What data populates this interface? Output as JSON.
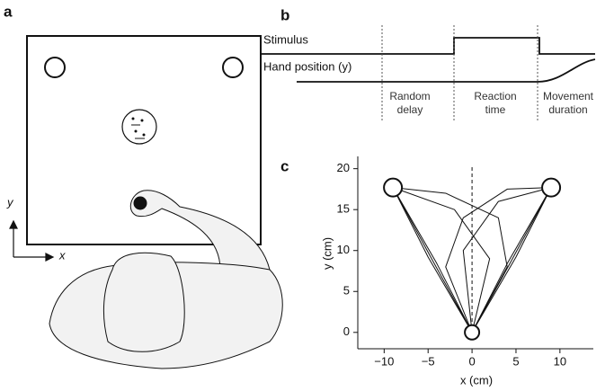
{
  "panel_a": {
    "label": "a",
    "axis_y": "y",
    "axis_x": "x"
  },
  "panel_b": {
    "label": "b",
    "stimulus": "Stimulus",
    "hand_position": "Hand position (y)",
    "phases": [
      [
        "Random",
        "delay"
      ],
      [
        "Reaction",
        "time"
      ],
      [
        "Movement",
        "duration"
      ]
    ]
  },
  "chart_data": {
    "type": "line",
    "panel_label": "c",
    "xlabel": "x (cm)",
    "ylabel": "y (cm)",
    "xlim": [
      -13,
      13.8
    ],
    "ylim": [
      -2,
      21.5
    ],
    "xticks": [
      {
        "value": -10,
        "label": "−10"
      },
      {
        "value": -5,
        "label": "−5"
      },
      0,
      5,
      10
    ],
    "yticks": [
      0,
      5,
      10,
      15,
      20
    ],
    "start": {
      "x": 0,
      "y": 0
    },
    "targets": {
      "x": [
        -9,
        9
      ],
      "y": [
        17.7,
        17.7
      ]
    },
    "trajectories": [
      {
        "x": [
          0,
          -4.5,
          -9
        ],
        "values": [
          0,
          8.8,
          17.7
        ]
      },
      {
        "x": [
          0,
          -4,
          -9
        ],
        "values": [
          0,
          8.4,
          17.7
        ]
      },
      {
        "x": [
          0,
          -5,
          -9
        ],
        "values": [
          0,
          9.2,
          17.7
        ]
      },
      {
        "x": [
          0,
          4.5,
          9
        ],
        "values": [
          0,
          8.8,
          17.7
        ]
      },
      {
        "x": [
          0,
          4,
          9
        ],
        "values": [
          0,
          8.4,
          17.7
        ]
      },
      {
        "x": [
          0,
          5,
          9
        ],
        "values": [
          0,
          9.2,
          17.7
        ]
      },
      {
        "x": [
          0,
          4,
          3,
          -3,
          -9
        ],
        "values": [
          0,
          8,
          14,
          17,
          17.7
        ]
      },
      {
        "x": [
          0,
          2,
          -2,
          -9
        ],
        "values": [
          0,
          9,
          15,
          17.7
        ]
      },
      {
        "x": [
          0,
          -3,
          -1,
          4,
          9
        ],
        "values": [
          0,
          8,
          14,
          17.5,
          17.7
        ]
      },
      {
        "x": [
          0,
          -1,
          3,
          9
        ],
        "values": [
          0,
          10,
          16,
          17.7
        ]
      }
    ]
  }
}
